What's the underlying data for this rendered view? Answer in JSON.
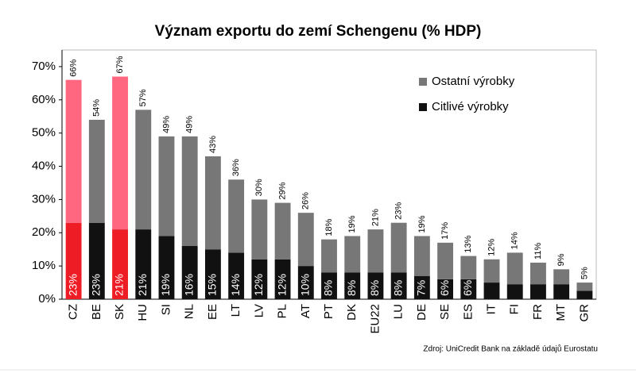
{
  "chart_data": {
    "type": "stacked_bar",
    "title": "Význam exportu do zemí Schengenu (% HDP)",
    "source": "Zdroj: UniCredit Bank na základě údajů Eurostatu",
    "categories": [
      "CZ",
      "BE",
      "SK",
      "HU",
      "SI",
      "NL",
      "EE",
      "LT",
      "LV",
      "PL",
      "AT",
      "PT",
      "DK",
      "EU22",
      "LU",
      "DE",
      "SE",
      "ES",
      "IT",
      "FI",
      "FR",
      "MT",
      "GR"
    ],
    "series": [
      {
        "name": "Citlivé výrobky",
        "color": "#111111",
        "colors": [
          "#ee1c25",
          "#111111",
          "#ee1c25",
          "#111111",
          "#111111",
          "#111111",
          "#111111",
          "#111111",
          "#111111",
          "#111111",
          "#111111",
          "#111111",
          "#111111",
          "#111111",
          "#111111",
          "#111111",
          "#111111",
          "#111111",
          "#111111",
          "#111111",
          "#111111",
          "#111111",
          "#111111"
        ],
        "values": [
          23,
          23,
          21,
          21,
          19,
          16,
          15,
          14,
          12,
          12,
          10,
          8,
          8,
          8,
          8,
          7,
          6,
          6,
          5,
          4.5,
          4.5,
          4.5,
          2.5
        ],
        "value_labels": [
          "23%",
          "23%",
          "21%",
          "21%",
          "19%",
          "16%",
          "15%",
          "14%",
          "12%",
          "12%",
          "10%",
          "8%",
          "8%",
          "8%",
          "8%",
          "7%",
          "6%",
          "6%",
          null,
          null,
          null,
          null,
          null
        ]
      },
      {
        "name": "Ostatní výrobky",
        "color": "#777777",
        "colors": [
          "#ff6680",
          "#777777",
          "#ff6680",
          "#777777",
          "#777777",
          "#777777",
          "#777777",
          "#777777",
          "#777777",
          "#777777",
          "#777777",
          "#777777",
          "#777777",
          "#777777",
          "#777777",
          "#777777",
          "#777777",
          "#777777",
          "#777777",
          "#777777",
          "#777777",
          "#777777",
          "#777777"
        ],
        "values": [
          43,
          31,
          46,
          36,
          30,
          33,
          28,
          22,
          18,
          17,
          16,
          10,
          11,
          13,
          15,
          12,
          11,
          7,
          7,
          9.5,
          6.5,
          4.5,
          2.5
        ]
      }
    ],
    "totals": {
      "values": [
        66,
        54,
        67,
        57,
        49,
        49,
        43,
        36,
        30,
        29,
        26,
        18,
        19,
        21,
        23,
        19,
        17,
        13,
        12,
        14,
        11,
        9,
        5
      ],
      "value_labels": [
        "66%",
        "54%",
        "67%",
        "57%",
        "49%",
        "49%",
        "43%",
        "36%",
        "30%",
        "29%",
        "26%",
        "18%",
        "19%",
        "21%",
        "23%",
        "19%",
        "17%",
        "13%",
        "12%",
        "14%",
        "11%",
        "9%",
        "5%"
      ]
    },
    "ylim": [
      0,
      75
    ],
    "yticks": [
      {
        "value": 0,
        "label": "0%"
      },
      {
        "value": 10,
        "label": "10%"
      },
      {
        "value": 20,
        "label": "20%"
      },
      {
        "value": 30,
        "label": "30%"
      },
      {
        "value": 40,
        "label": "40%"
      },
      {
        "value": 50,
        "label": "50%"
      },
      {
        "value": 60,
        "label": "60%"
      },
      {
        "value": 70,
        "label": "70%"
      }
    ],
    "grid": false,
    "legend": "top-right"
  }
}
